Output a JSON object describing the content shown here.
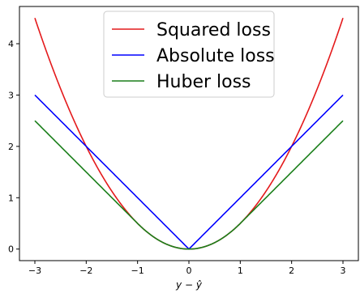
{
  "chart_data": {
    "type": "line",
    "title": "",
    "xlabel": "y − ŷ",
    "ylabel": "",
    "xlim": [
      -3.3,
      3.3
    ],
    "ylim": [
      -0.225,
      4.725
    ],
    "xticks": [
      -3,
      -2,
      -1,
      0,
      1,
      2,
      3
    ],
    "yticks": [
      0,
      1,
      2,
      3,
      4
    ],
    "xtick_labels": [
      "−3",
      "−2",
      "−1",
      "0",
      "1",
      "2",
      "3"
    ],
    "ytick_labels": [
      "0",
      "1",
      "2",
      "3",
      "4"
    ],
    "grid": false,
    "legend_position": "top-center",
    "huber_delta": 1,
    "series": [
      {
        "name": "Squared loss",
        "function": "r^2 / 2",
        "color": "#e41a1c",
        "x": [
          -3,
          -2,
          -1,
          0,
          1,
          2,
          3
        ],
        "values": [
          4.5,
          2.0,
          0.5,
          0,
          0.5,
          2.0,
          4.5
        ]
      },
      {
        "name": "Absolute loss",
        "function": "|r|",
        "color": "#0000ff",
        "x": [
          -3,
          -2,
          -1,
          0,
          1,
          2,
          3
        ],
        "values": [
          3,
          2,
          1,
          0,
          1,
          2,
          3
        ]
      },
      {
        "name": "Huber loss",
        "function": "r^2/2 if |r|<=1 else |r|-1/2",
        "color": "#1a7f1a",
        "x": [
          -3,
          -2,
          -1,
          0,
          1,
          2,
          3
        ],
        "values": [
          2.5,
          1.5,
          0.5,
          0,
          0.5,
          1.5,
          2.5
        ]
      }
    ]
  }
}
